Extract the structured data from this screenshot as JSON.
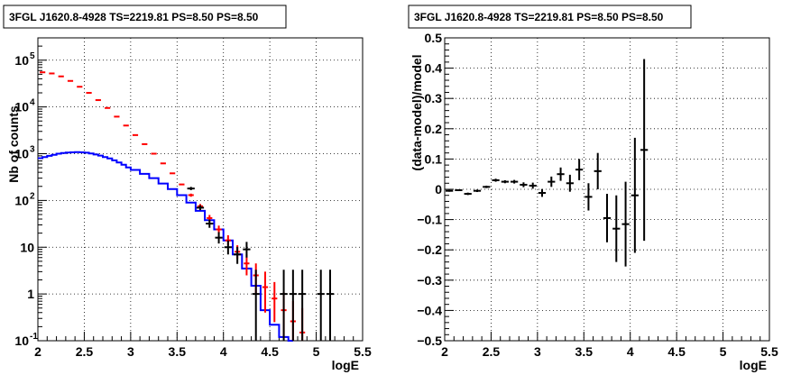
{
  "chart_data": [
    {
      "type": "line",
      "title": "3FGL J1620.8-4928 TS=2219.81 PS=8.50 PS=8.50",
      "xlabel": "logE",
      "ylabel": "Nb of counts",
      "xlim": [
        2,
        5.5
      ],
      "ylim": [
        0.1,
        300000
      ],
      "yscale": "log",
      "grid": true,
      "xticks": [
        "2",
        "2.5",
        "3",
        "3.5",
        "4",
        "4.5",
        "5",
        "5.5"
      ],
      "yticks": [
        {
          "base": "10",
          "exp": "-1",
          "v": 0.1
        },
        {
          "base": "1",
          "exp": "",
          "v": 1
        },
        {
          "base": "10",
          "exp": "",
          "v": 10
        },
        {
          "base": "10",
          "exp": "2",
          "v": 100
        },
        {
          "base": "10",
          "exp": "3",
          "v": 1000
        },
        {
          "base": "10",
          "exp": "4",
          "v": 10000
        },
        {
          "base": "10",
          "exp": "5",
          "v": 100000
        }
      ],
      "bin_width": 0.1,
      "series": [
        {
          "role": "model_total",
          "color": "#ff0000",
          "style": "markers",
          "points": [
            {
              "x": 2.05,
              "y": 55000,
              "elo": 0,
              "ehi": 0
            },
            {
              "x": 2.15,
              "y": 52000,
              "elo": 0,
              "ehi": 0
            },
            {
              "x": 2.25,
              "y": 45000,
              "elo": 0,
              "ehi": 0
            },
            {
              "x": 2.35,
              "y": 36000,
              "elo": 0,
              "ehi": 0
            },
            {
              "x": 2.45,
              "y": 27000,
              "elo": 0,
              "ehi": 0
            },
            {
              "x": 2.55,
              "y": 20000,
              "elo": 0,
              "ehi": 0
            },
            {
              "x": 2.65,
              "y": 14000,
              "elo": 0,
              "ehi": 0
            },
            {
              "x": 2.75,
              "y": 9500,
              "elo": 0,
              "ehi": 0
            },
            {
              "x": 2.85,
              "y": 6200,
              "elo": 0,
              "ehi": 0
            },
            {
              "x": 2.95,
              "y": 4000,
              "elo": 0,
              "ehi": 0
            },
            {
              "x": 3.05,
              "y": 2500,
              "elo": 0,
              "ehi": 0
            },
            {
              "x": 3.15,
              "y": 1600,
              "elo": 0,
              "ehi": 0
            },
            {
              "x": 3.25,
              "y": 1000,
              "elo": 0,
              "ehi": 0
            },
            {
              "x": 3.35,
              "y": 620,
              "elo": 0,
              "ehi": 0
            },
            {
              "x": 3.45,
              "y": 380,
              "elo": 0,
              "ehi": 0
            },
            {
              "x": 3.55,
              "y": 220,
              "elo": 0,
              "ehi": 0
            },
            {
              "x": 3.65,
              "y": 130,
              "elo": 10,
              "ehi": 10
            },
            {
              "x": 3.75,
              "y": 75,
              "elo": 8,
              "ehi": 9
            },
            {
              "x": 3.85,
              "y": 42,
              "elo": 6,
              "ehi": 7
            },
            {
              "x": 3.95,
              "y": 24,
              "elo": 4,
              "ehi": 5
            },
            {
              "x": 4.05,
              "y": 14,
              "elo": 3,
              "ehi": 4
            },
            {
              "x": 4.15,
              "y": 8,
              "elo": 2.4,
              "ehi": 3
            },
            {
              "x": 4.25,
              "y": 4.5,
              "elo": 2,
              "ehi": 2.5
            },
            {
              "x": 4.35,
              "y": 2.5,
              "elo": 1.5,
              "ehi": 2
            },
            {
              "x": 4.45,
              "y": 1.4,
              "elo": 1,
              "ehi": 1.6
            },
            {
              "x": 4.55,
              "y": 0.8,
              "elo": 0.55,
              "ehi": 1
            },
            {
              "x": 4.65,
              "y": 0.45,
              "elo": 0.33,
              "ehi": 0.65
            },
            {
              "x": 4.75,
              "y": 0.26,
              "elo": 0.16,
              "ehi": 0.45
            },
            {
              "x": 4.85,
              "y": 0.15,
              "elo": 0.05,
              "ehi": 0.35
            }
          ]
        },
        {
          "role": "source_model",
          "color": "#0000ff",
          "style": "step",
          "points": [
            {
              "x": 2.0,
              "y": 800
            },
            {
              "x": 2.05,
              "y": 850
            },
            {
              "x": 2.1,
              "y": 900
            },
            {
              "x": 2.15,
              "y": 950
            },
            {
              "x": 2.2,
              "y": 1000
            },
            {
              "x": 2.25,
              "y": 1030
            },
            {
              "x": 2.3,
              "y": 1060
            },
            {
              "x": 2.35,
              "y": 1070
            },
            {
              "x": 2.4,
              "y": 1080
            },
            {
              "x": 2.45,
              "y": 1070
            },
            {
              "x": 2.5,
              "y": 1050
            },
            {
              "x": 2.55,
              "y": 1010
            },
            {
              "x": 2.6,
              "y": 960
            },
            {
              "x": 2.65,
              "y": 910
            },
            {
              "x": 2.7,
              "y": 850
            },
            {
              "x": 2.75,
              "y": 790
            },
            {
              "x": 2.8,
              "y": 720
            },
            {
              "x": 2.85,
              "y": 650
            },
            {
              "x": 2.9,
              "y": 580
            },
            {
              "x": 2.95,
              "y": 510
            },
            {
              "x": 3.0,
              "y": 450
            },
            {
              "x": 3.1,
              "y": 370
            },
            {
              "x": 3.2,
              "y": 300
            },
            {
              "x": 3.3,
              "y": 230
            },
            {
              "x": 3.4,
              "y": 175
            },
            {
              "x": 3.5,
              "y": 130
            },
            {
              "x": 3.6,
              "y": 90
            },
            {
              "x": 3.7,
              "y": 60
            },
            {
              "x": 3.8,
              "y": 38
            },
            {
              "x": 3.9,
              "y": 24
            },
            {
              "x": 4.0,
              "y": 14
            },
            {
              "x": 4.1,
              "y": 7
            },
            {
              "x": 4.2,
              "y": 3.5
            },
            {
              "x": 4.3,
              "y": 1.5
            },
            {
              "x": 4.4,
              "y": 0.45
            },
            {
              "x": 4.5,
              "y": 0.22
            },
            {
              "x": 4.6,
              "y": 0.12
            },
            {
              "x": 4.7,
              "y": 0.08
            }
          ]
        },
        {
          "role": "data",
          "color": "#000000",
          "style": "errorbars",
          "points": [
            {
              "x": 3.65,
              "y": 180,
              "elo": 14,
              "ehi": 15
            },
            {
              "x": 3.75,
              "y": 70,
              "elo": 8,
              "ehi": 9
            },
            {
              "x": 3.85,
              "y": 32,
              "elo": 6,
              "ehi": 7
            },
            {
              "x": 3.95,
              "y": 16,
              "elo": 4,
              "ehi": 5
            },
            {
              "x": 4.05,
              "y": 10,
              "elo": 3,
              "ehi": 4
            },
            {
              "x": 4.15,
              "y": 7,
              "elo": 2.6,
              "ehi": 3.2
            },
            {
              "x": 4.25,
              "y": 9,
              "elo": 3,
              "ehi": 4
            },
            {
              "x": 4.35,
              "y": 1,
              "elo": 0.9,
              "ehi": 2.3
            },
            {
              "x": 4.65,
              "y": 1,
              "elo": 0.9,
              "ehi": 2.3
            },
            {
              "x": 4.75,
              "y": 1,
              "elo": 0.9,
              "ehi": 2.3
            },
            {
              "x": 4.85,
              "y": 1,
              "elo": 0.9,
              "ehi": 2.3
            },
            {
              "x": 5.05,
              "y": 1,
              "elo": 0.9,
              "ehi": 2.3
            },
            {
              "x": 5.15,
              "y": 1,
              "elo": 0.9,
              "ehi": 2.3
            }
          ]
        }
      ]
    },
    {
      "type": "scatter",
      "title": "3FGL J1620.8-4928 TS=2219.81 PS=8.50 PS=8.50",
      "xlabel": "logE",
      "ylabel": "(data-model)/model",
      "xlim": [
        2,
        5.5
      ],
      "ylim": [
        -0.5,
        0.5
      ],
      "grid": true,
      "xticks": [
        "2",
        "2.5",
        "3",
        "3.5",
        "4",
        "4.5",
        "5",
        "5.5"
      ],
      "yticks": [
        "−0.5",
        "−0.4",
        "−0.3",
        "−0.2",
        "−0.1",
        "0",
        "0.1",
        "0.2",
        "0.3",
        "0.4",
        "0.5"
      ],
      "bin_width": 0.1,
      "series": [
        {
          "role": "residuals",
          "color": "#000000",
          "points": [
            {
              "x": 2.05,
              "y": -0.005,
              "e": 0.003
            },
            {
              "x": 2.15,
              "y": -0.003,
              "e": 0.003
            },
            {
              "x": 2.25,
              "y": -0.015,
              "e": 0.004
            },
            {
              "x": 2.35,
              "y": -0.005,
              "e": 0.004
            },
            {
              "x": 2.45,
              "y": 0.008,
              "e": 0.004
            },
            {
              "x": 2.55,
              "y": 0.03,
              "e": 0.005
            },
            {
              "x": 2.65,
              "y": 0.025,
              "e": 0.005
            },
            {
              "x": 2.75,
              "y": 0.025,
              "e": 0.006
            },
            {
              "x": 2.85,
              "y": 0.015,
              "e": 0.008
            },
            {
              "x": 2.95,
              "y": 0.012,
              "e": 0.01
            },
            {
              "x": 3.05,
              "y": -0.012,
              "e": 0.013
            },
            {
              "x": 3.15,
              "y": 0.025,
              "e": 0.017
            },
            {
              "x": 3.25,
              "y": 0.05,
              "e": 0.022
            },
            {
              "x": 3.35,
              "y": 0.02,
              "e": 0.028
            },
            {
              "x": 3.45,
              "y": 0.065,
              "e": 0.035
            },
            {
              "x": 3.55,
              "y": -0.025,
              "e": 0.045
            },
            {
              "x": 3.65,
              "y": 0.06,
              "e": 0.06
            },
            {
              "x": 3.75,
              "y": -0.095,
              "e": 0.08
            },
            {
              "x": 3.85,
              "y": -0.13,
              "e": 0.11
            },
            {
              "x": 3.95,
              "y": -0.115,
              "e": 0.14
            },
            {
              "x": 4.05,
              "y": -0.02,
              "e": 0.19
            },
            {
              "x": 4.15,
              "y": 0.13,
              "e": 0.3
            }
          ]
        }
      ]
    }
  ]
}
